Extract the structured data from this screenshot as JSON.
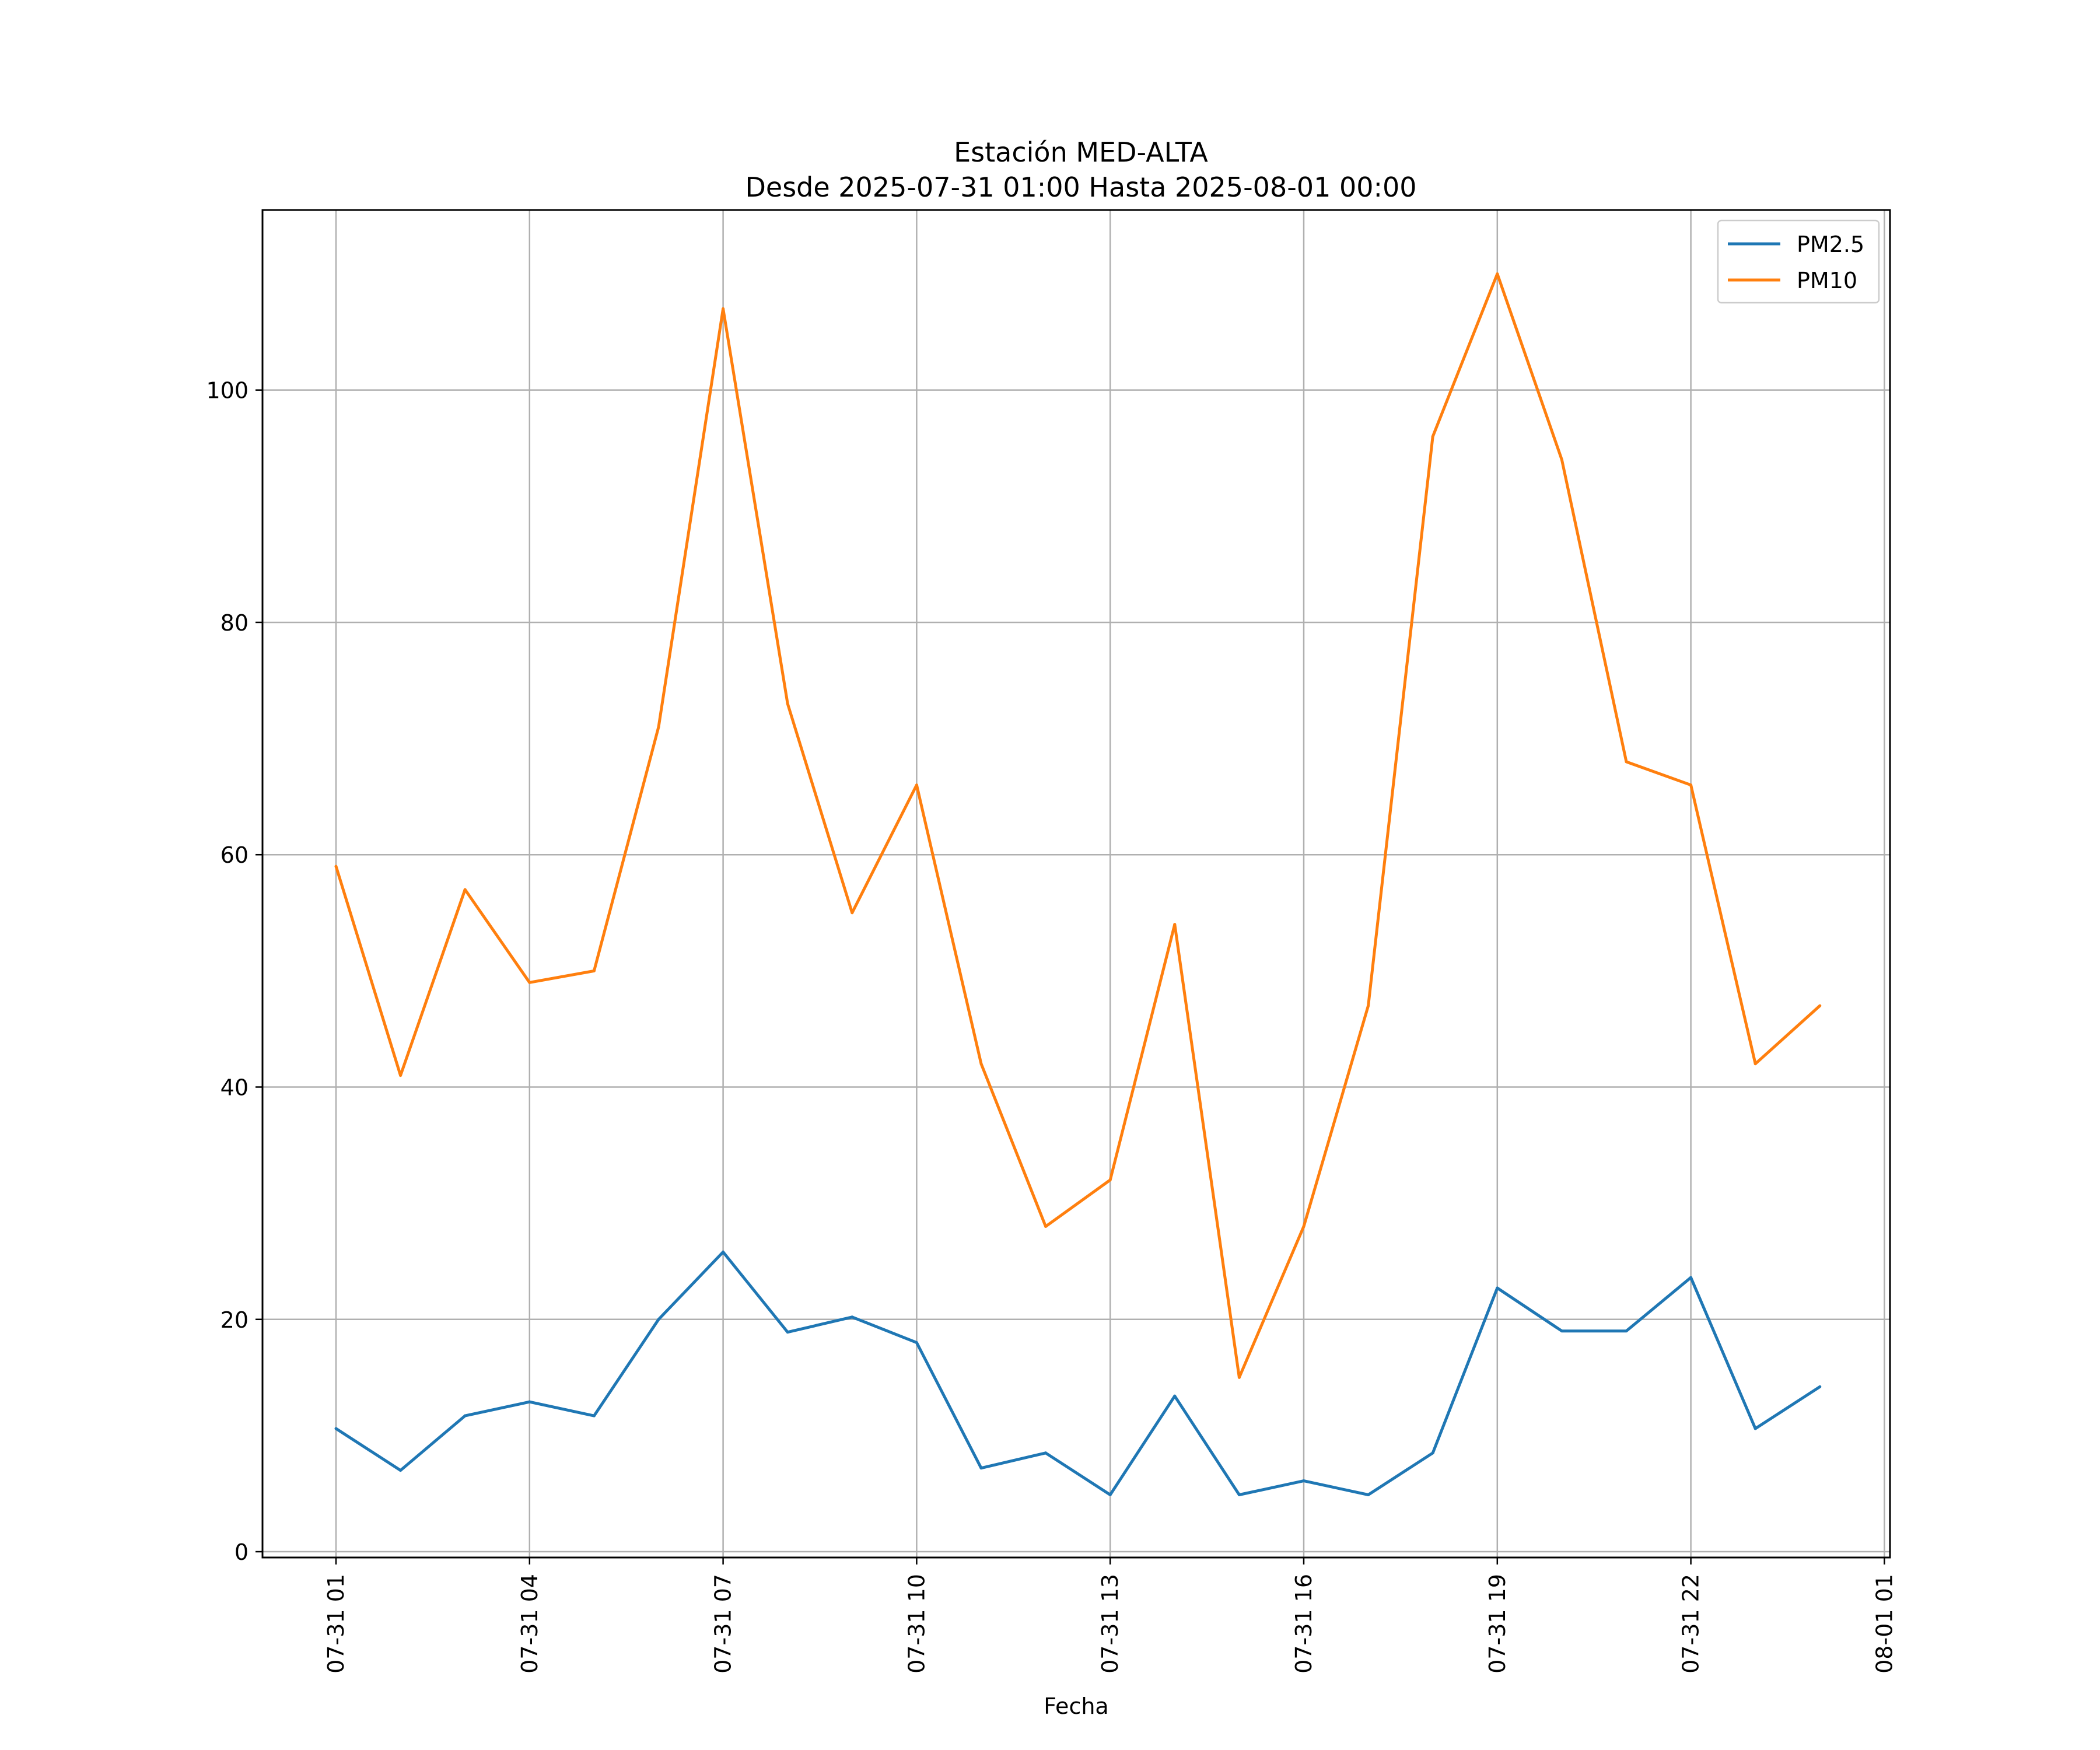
{
  "chart_data": {
    "type": "line",
    "title": "Estación MED-ALTA",
    "subtitle": "Desde 2025-07-31 01:00 Hasta 2025-08-01 00:00",
    "xlabel": "Fecha",
    "ylabel": "",
    "xticks": [
      "07-31 01",
      "07-31 04",
      "07-31 07",
      "07-31 10",
      "07-31 13",
      "07-31 16",
      "07-31 19",
      "07-31 22",
      "08-01 01"
    ],
    "yticks": [
      "0",
      "20",
      "40",
      "60",
      "80",
      "100"
    ],
    "xlim": [
      0.0,
      24.0
    ],
    "ylim": [
      -0.5,
      115.5
    ],
    "grid": true,
    "legend_position": "top-right",
    "x": [
      "2025-07-31 01:00",
      "2025-07-31 02:00",
      "2025-07-31 03:00",
      "2025-07-31 04:00",
      "2025-07-31 05:00",
      "2025-07-31 06:00",
      "2025-07-31 07:00",
      "2025-07-31 08:00",
      "2025-07-31 09:00",
      "2025-07-31 10:00",
      "2025-07-31 11:00",
      "2025-07-31 12:00",
      "2025-07-31 13:00",
      "2025-07-31 14:00",
      "2025-07-31 15:00",
      "2025-07-31 16:00",
      "2025-07-31 17:00",
      "2025-07-31 18:00",
      "2025-07-31 19:00",
      "2025-07-31 20:00",
      "2025-07-31 21:00",
      "2025-07-31 22:00",
      "2025-07-31 23:00",
      "2025-08-01 00:00"
    ],
    "series": [
      {
        "name": "PM2.5",
        "color": "#1f77b4",
        "values": [
          10.6,
          7.0,
          11.7,
          12.9,
          11.7,
          20.0,
          25.8,
          18.9,
          20.2,
          18.0,
          7.2,
          8.5,
          4.9,
          13.4,
          4.9,
          6.1,
          4.9,
          8.5,
          22.7,
          19.0,
          19.0,
          23.6,
          10.6,
          14.2
        ]
      },
      {
        "name": "PM10",
        "color": "#ff7f0e",
        "values": [
          59,
          41,
          57,
          49,
          50,
          71,
          107,
          73,
          55,
          66,
          42,
          28,
          32,
          54,
          15,
          28,
          47,
          96,
          110,
          94,
          68,
          66,
          42,
          47
        ]
      }
    ]
  }
}
